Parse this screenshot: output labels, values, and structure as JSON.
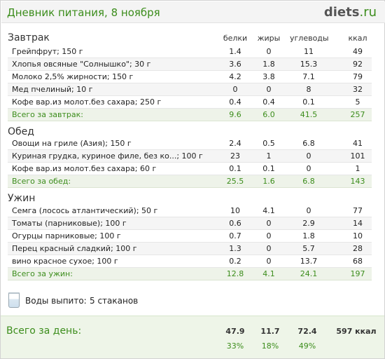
{
  "header": {
    "title": "Дневник питания, 8 ноября",
    "logo_main": "diets",
    "logo_suffix": ".ru"
  },
  "columns": {
    "protein": "белки",
    "fat": "жиры",
    "carbs": "углеводы",
    "kcal": "ккал"
  },
  "meals": [
    {
      "title": "Завтрак",
      "items": [
        {
          "name": "Грейпфрут; 150 г",
          "protein": "1.4",
          "fat": "0",
          "carbs": "11",
          "kcal": "49"
        },
        {
          "name": "Хлопья овсяные \"Солнышко\"; 30 г",
          "protein": "3.6",
          "fat": "1.8",
          "carbs": "15.3",
          "kcal": "92"
        },
        {
          "name": "Молоко 2,5% жирности; 150 г",
          "protein": "4.2",
          "fat": "3.8",
          "carbs": "7.1",
          "kcal": "79"
        },
        {
          "name": "Мед пчелиный; 10 г",
          "protein": "0",
          "fat": "0",
          "carbs": "8",
          "kcal": "32"
        },
        {
          "name": "Кофе вар.из молот.без сахара; 250 г",
          "protein": "0.4",
          "fat": "0.4",
          "carbs": "0.1",
          "kcal": "5"
        }
      ],
      "total": {
        "label": "Всего за завтрак:",
        "protein": "9.6",
        "fat": "6.0",
        "carbs": "41.5",
        "kcal": "257"
      }
    },
    {
      "title": "Обед",
      "items": [
        {
          "name": "Овощи на гриле (Азия); 150 г",
          "protein": "2.4",
          "fat": "0.5",
          "carbs": "6.8",
          "kcal": "41"
        },
        {
          "name": "Куриная грудка, куриное филе, без ко...; 100 г",
          "protein": "23",
          "fat": "1",
          "carbs": "0",
          "kcal": "101"
        },
        {
          "name": "Кофе вар.из молот.без сахара; 60 г",
          "protein": "0.1",
          "fat": "0.1",
          "carbs": "0",
          "kcal": "1"
        }
      ],
      "total": {
        "label": "Всего за обед:",
        "protein": "25.5",
        "fat": "1.6",
        "carbs": "6.8",
        "kcal": "143"
      }
    },
    {
      "title": "Ужин",
      "items": [
        {
          "name": "Семга (лосось атлантический); 50 г",
          "protein": "10",
          "fat": "4.1",
          "carbs": "0",
          "kcal": "77"
        },
        {
          "name": "Томаты (парниковые); 100 г",
          "protein": "0.6",
          "fat": "0",
          "carbs": "2.9",
          "kcal": "14"
        },
        {
          "name": "Огурцы парниковые; 100 г",
          "protein": "0.7",
          "fat": "0",
          "carbs": "1.8",
          "kcal": "10"
        },
        {
          "name": "Перец красный сладкий; 100 г",
          "protein": "1.3",
          "fat": "0",
          "carbs": "5.7",
          "kcal": "28"
        },
        {
          "name": "вино красное сухое; 100 г",
          "protein": "0.2",
          "fat": "0",
          "carbs": "13.7",
          "kcal": "68"
        }
      ],
      "total": {
        "label": "Всего за ужин:",
        "protein": "12.8",
        "fat": "4.1",
        "carbs": "24.1",
        "kcal": "197"
      }
    }
  ],
  "water": {
    "label": "Воды выпито:",
    "value": "5 стаканов",
    "icon": "glass-icon"
  },
  "day_total": {
    "label": "Всего за день:",
    "protein": "47.9",
    "fat": "11.7",
    "carbs": "72.4",
    "kcal": "597 ккал",
    "protein_pct": "33%",
    "fat_pct": "18%",
    "carbs_pct": "49%"
  },
  "colors": {
    "accent_green": "#3c8d1c",
    "total_row_bg": "#eef3e9",
    "day_box_bg": "#eef5e8"
  }
}
